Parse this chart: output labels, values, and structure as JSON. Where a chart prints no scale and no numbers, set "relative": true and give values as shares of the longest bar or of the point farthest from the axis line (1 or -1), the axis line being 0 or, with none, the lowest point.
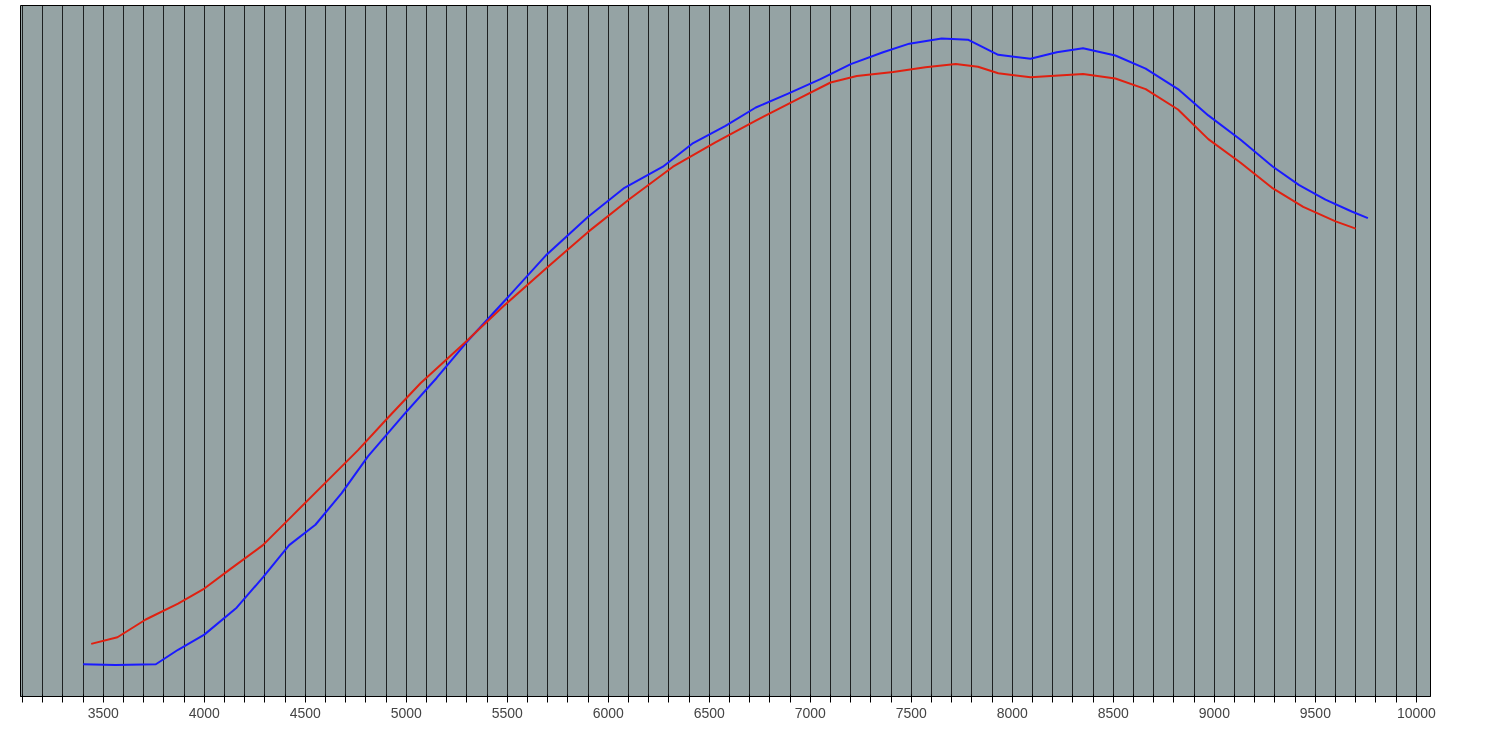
{
  "chart_data": {
    "type": "line",
    "relative": true,
    "tick_labels": "x",
    "grid": "x",
    "marker": "none",
    "line_style": "solid",
    "xlim": [
      3090,
      10070
    ],
    "xticks": [
      {
        "value": 3100,
        "label": null
      },
      {
        "value": 3200,
        "label": null
      },
      {
        "value": 3300,
        "label": null
      },
      {
        "value": 3400,
        "label": null
      },
      3500,
      {
        "value": 3600,
        "label": null
      },
      {
        "value": 3700,
        "label": null
      },
      {
        "value": 3800,
        "label": null
      },
      {
        "value": 3900,
        "label": null
      },
      4000,
      {
        "value": 4100,
        "label": null
      },
      {
        "value": 4200,
        "label": null
      },
      {
        "value": 4300,
        "label": null
      },
      {
        "value": 4400,
        "label": null
      },
      4500,
      {
        "value": 4600,
        "label": null
      },
      {
        "value": 4700,
        "label": null
      },
      {
        "value": 4800,
        "label": null
      },
      {
        "value": 4900,
        "label": null
      },
      5000,
      {
        "value": 5100,
        "label": null
      },
      {
        "value": 5200,
        "label": null
      },
      {
        "value": 5300,
        "label": null
      },
      {
        "value": 5400,
        "label": null
      },
      5500,
      {
        "value": 5600,
        "label": null
      },
      {
        "value": 5700,
        "label": null
      },
      {
        "value": 5800,
        "label": null
      },
      {
        "value": 5900,
        "label": null
      },
      6000,
      {
        "value": 6100,
        "label": null
      },
      {
        "value": 6200,
        "label": null
      },
      {
        "value": 6300,
        "label": null
      },
      {
        "value": 6400,
        "label": null
      },
      6500,
      {
        "value": 6600,
        "label": null
      },
      {
        "value": 6700,
        "label": null
      },
      {
        "value": 6800,
        "label": null
      },
      {
        "value": 6900,
        "label": null
      },
      7000,
      {
        "value": 7100,
        "label": null
      },
      {
        "value": 7200,
        "label": null
      },
      {
        "value": 7300,
        "label": null
      },
      {
        "value": 7400,
        "label": null
      },
      7500,
      {
        "value": 7600,
        "label": null
      },
      {
        "value": 7700,
        "label": null
      },
      {
        "value": 7800,
        "label": null
      },
      {
        "value": 7900,
        "label": null
      },
      8000,
      {
        "value": 8100,
        "label": null
      },
      {
        "value": 8200,
        "label": null
      },
      {
        "value": 8300,
        "label": null
      },
      {
        "value": 8400,
        "label": null
      },
      8500,
      {
        "value": 8600,
        "label": null
      },
      {
        "value": 8700,
        "label": null
      },
      {
        "value": 8800,
        "label": null
      },
      {
        "value": 8900,
        "label": null
      },
      9000,
      {
        "value": 9100,
        "label": null
      },
      {
        "value": 9200,
        "label": null
      },
      {
        "value": 9300,
        "label": null
      },
      {
        "value": 9400,
        "label": null
      },
      9500,
      {
        "value": 9600,
        "label": null
      },
      {
        "value": 9700,
        "label": null
      },
      {
        "value": 9800,
        "label": null
      },
      {
        "value": 9900,
        "label": null
      },
      10000
    ],
    "series": [
      {
        "color": "#1a1aff",
        "x": [
          3400,
          3560,
          3760,
          3870,
          4000,
          4160,
          4290,
          4420,
          4550,
          4680,
          4810,
          4990,
          5150,
          5300,
          5480,
          5690,
          5900,
          6080,
          6270,
          6420,
          6580,
          6730,
          6890,
          7050,
          7200,
          7360,
          7490,
          7650,
          7780,
          7930,
          8090,
          8220,
          8350,
          8510,
          8660,
          8820,
          8970,
          9130,
          9290,
          9420,
          9550,
          9680,
          9760
        ],
        "values": [
          0.049,
          0.048,
          0.049,
          0.071,
          0.094,
          0.135,
          0.181,
          0.23,
          0.261,
          0.309,
          0.365,
          0.429,
          0.484,
          0.539,
          0.599,
          0.67,
          0.729,
          0.773,
          0.805,
          0.841,
          0.867,
          0.895,
          0.916,
          0.938,
          0.961,
          0.979,
          0.992,
          1,
          0.998,
          0.975,
          0.969,
          0.979,
          0.985,
          0.974,
          0.954,
          0.923,
          0.883,
          0.846,
          0.805,
          0.777,
          0.755,
          0.737,
          0.727
        ]
      },
      {
        "color": "#e02010",
        "x": [
          3440,
          3570,
          3710,
          3870,
          4000,
          4130,
          4290,
          4440,
          4600,
          4760,
          4910,
          5070,
          5280,
          5480,
          5690,
          5900,
          6110,
          6320,
          6530,
          6730,
          6940,
          7100,
          7230,
          7410,
          7570,
          7720,
          7830,
          7930,
          8090,
          8250,
          8350,
          8510,
          8660,
          8820,
          8970,
          9130,
          9290,
          9440,
          9600,
          9700
        ],
        "values": [
          0.08,
          0.09,
          0.117,
          0.141,
          0.164,
          0.194,
          0.23,
          0.276,
          0.325,
          0.374,
          0.424,
          0.476,
          0.535,
          0.593,
          0.65,
          0.706,
          0.757,
          0.805,
          0.842,
          0.875,
          0.908,
          0.933,
          0.943,
          0.949,
          0.956,
          0.961,
          0.957,
          0.947,
          0.941,
          0.944,
          0.946,
          0.939,
          0.923,
          0.892,
          0.847,
          0.811,
          0.772,
          0.744,
          0.722,
          0.711
        ]
      }
    ]
  }
}
